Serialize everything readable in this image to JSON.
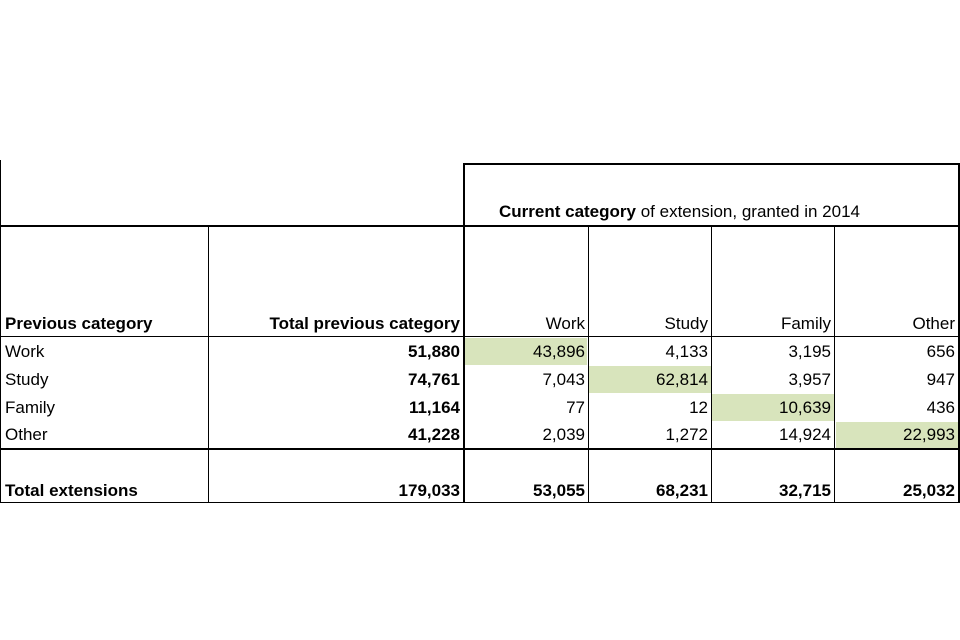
{
  "table": {
    "super_header": {
      "bold_part": "Current category",
      "rest": " of extension, granted in 2014"
    },
    "headers": {
      "previous_category": "Previous category",
      "total_previous": "Total previous category",
      "current": [
        "Work",
        "Study",
        "Family",
        "Other"
      ]
    },
    "rows": [
      {
        "label": "Work",
        "total": "51,880",
        "values": [
          "43,896",
          "4,133",
          "3,195",
          "656"
        ],
        "highlight_index": 0
      },
      {
        "label": "Study",
        "total": "74,761",
        "values": [
          "7,043",
          "62,814",
          "3,957",
          "947"
        ],
        "highlight_index": 1
      },
      {
        "label": "Family",
        "total": "11,164",
        "values": [
          "77",
          "12",
          "10,639",
          "436"
        ],
        "highlight_index": 2
      },
      {
        "label": "Other",
        "total": "41,228",
        "values": [
          "2,039",
          "1,272",
          "14,924",
          "22,993"
        ],
        "highlight_index": 3
      }
    ],
    "totals": {
      "label": "Total extensions",
      "total": "179,033",
      "values": [
        "53,055",
        "68,231",
        "32,715",
        "25,032"
      ]
    },
    "highlight_color": "#d8e4bc"
  }
}
